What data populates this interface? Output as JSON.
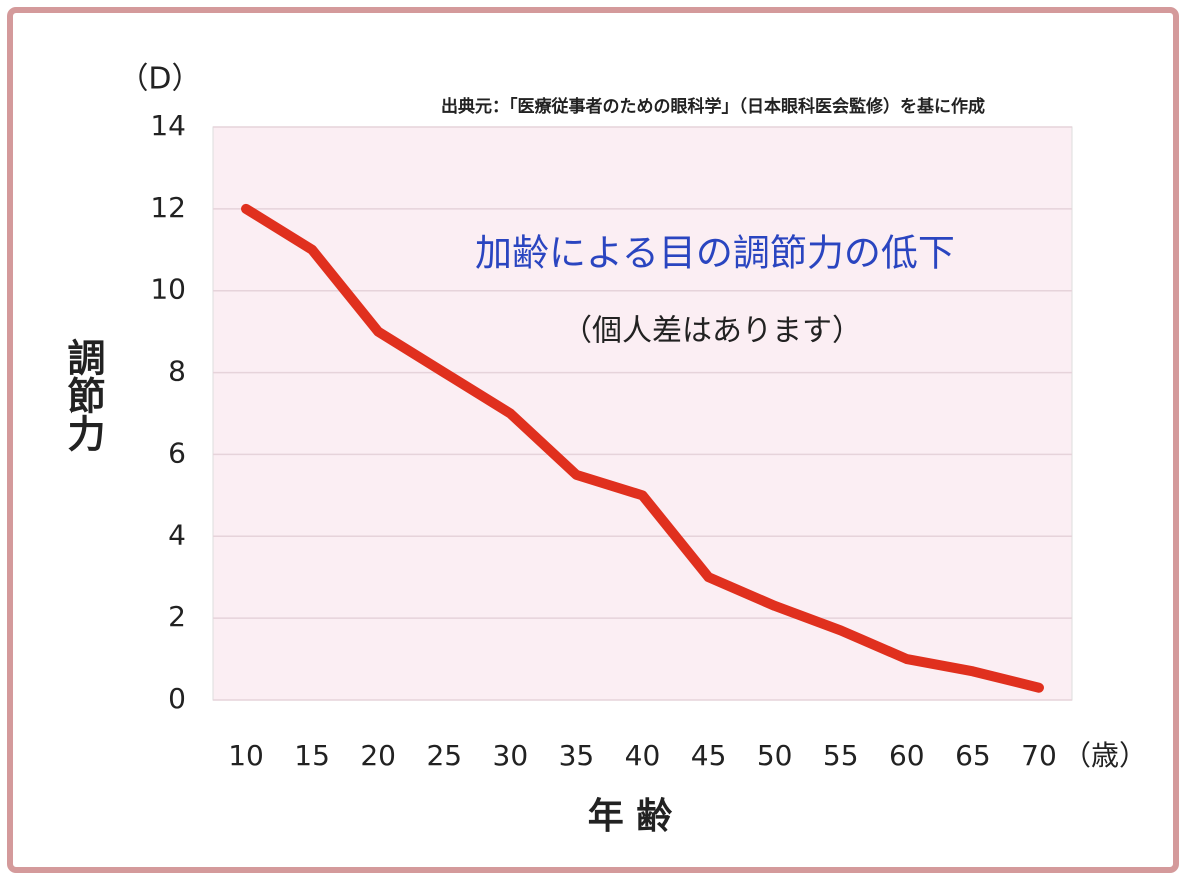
{
  "chart_data": {
    "type": "line",
    "title": "加齢による目の調節力の低下",
    "subtitle": "（個人差はあります）",
    "source": "出典元：「医療従事者のための眼科学」（日本眼科医会監修）を基に作成",
    "y_unit": "（D）",
    "y_label": "調節力",
    "x_label": "年 齢",
    "x_unit": "（歳）",
    "categories": [
      "10",
      "15",
      "20",
      "25",
      "30",
      "35",
      "40",
      "45",
      "50",
      "55",
      "60",
      "65",
      "70"
    ],
    "values": [
      12,
      11,
      9,
      8,
      7,
      5.5,
      5,
      3,
      2.3,
      1.7,
      1,
      0.7,
      0.3
    ],
    "color": "#e0301e",
    "ylim": [
      0,
      14
    ],
    "yticks": [
      0,
      2,
      4,
      6,
      8,
      10,
      12,
      14
    ],
    "grid": true
  }
}
